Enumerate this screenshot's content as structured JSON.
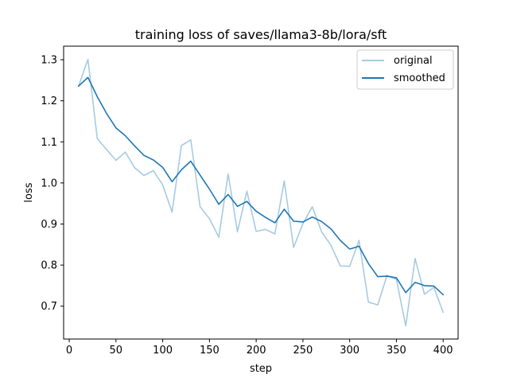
{
  "chart_data": {
    "type": "line",
    "title": "training loss of saves/llama3-8b/lora/sft",
    "xlabel": "step",
    "ylabel": "loss",
    "xlim": [
      -6,
      416
    ],
    "ylim": [
      0.62,
      1.333
    ],
    "xticks": [
      0,
      50,
      100,
      150,
      200,
      250,
      300,
      350,
      400
    ],
    "yticks": [
      0.7,
      0.8,
      0.9,
      1.0,
      1.1,
      1.2,
      1.3
    ],
    "xtick_labels": [
      "0",
      "50",
      "100",
      "150",
      "200",
      "250",
      "300",
      "350",
      "400"
    ],
    "ytick_labels": [
      "0.7",
      "0.8",
      "0.9",
      "1.0",
      "1.1",
      "1.2",
      "1.3"
    ],
    "grid": false,
    "legend_position": "top-right",
    "x": [
      10,
      20,
      30,
      40,
      50,
      60,
      70,
      80,
      90,
      100,
      110,
      120,
      130,
      140,
      150,
      160,
      170,
      180,
      190,
      200,
      210,
      220,
      230,
      240,
      250,
      260,
      270,
      280,
      290,
      300,
      310,
      320,
      330,
      340,
      350,
      360,
      370,
      380,
      390,
      400
    ],
    "series": [
      {
        "name": "original",
        "color": "#a6cbe0",
        "values": [
          1.236,
          1.301,
          1.108,
          1.081,
          1.055,
          1.075,
          1.037,
          1.018,
          1.03,
          0.995,
          0.929,
          1.091,
          1.105,
          0.942,
          0.913,
          0.868,
          1.022,
          0.881,
          0.98,
          0.882,
          0.887,
          0.876,
          1.005,
          0.843,
          0.901,
          0.942,
          0.881,
          0.848,
          0.798,
          0.797,
          0.86,
          0.71,
          0.703,
          0.775,
          0.765,
          0.652,
          0.816,
          0.729,
          0.746,
          0.685
        ]
      },
      {
        "name": "smoothed",
        "color": "#1f77b4",
        "values": [
          1.236,
          1.257,
          1.21,
          1.169,
          1.134,
          1.115,
          1.09,
          1.067,
          1.056,
          1.038,
          1.003,
          1.032,
          1.053,
          1.019,
          0.985,
          0.948,
          0.972,
          0.943,
          0.955,
          0.931,
          0.916,
          0.903,
          0.936,
          0.907,
          0.905,
          0.917,
          0.906,
          0.888,
          0.86,
          0.839,
          0.846,
          0.804,
          0.772,
          0.773,
          0.769,
          0.733,
          0.758,
          0.75,
          0.749,
          0.728
        ]
      }
    ]
  }
}
